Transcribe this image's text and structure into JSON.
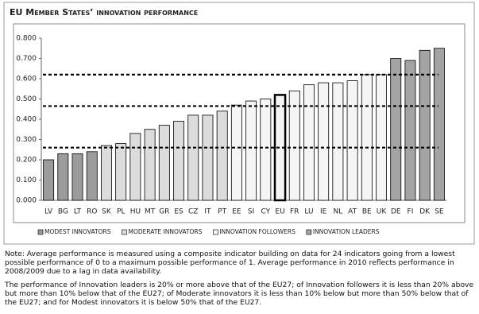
{
  "chart_data": {
    "type": "bar",
    "title": "EU Member States’ innovation performance",
    "categories": [
      "LV",
      "BG",
      "LT",
      "RO",
      "SK",
      "PL",
      "HU",
      "MT",
      "GR",
      "ES",
      "CZ",
      "IT",
      "PT",
      "EE",
      "SI",
      "CY",
      "EU",
      "FR",
      "LU",
      "IE",
      "NL",
      "AT",
      "BE",
      "UK",
      "DE",
      "FI",
      "DK",
      "SE"
    ],
    "series": [
      {
        "name": "MODEST INNOVATORS",
        "color": "#9c9c9c",
        "values": [
          0.2,
          0.23,
          0.23,
          0.24,
          null,
          null,
          null,
          null,
          null,
          null,
          null,
          null,
          null,
          null,
          null,
          null,
          null,
          null,
          null,
          null,
          null,
          null,
          null,
          null,
          null,
          null,
          null,
          null
        ]
      },
      {
        "name": "MODERATE INNOVATORS",
        "color": "#dcdcdc",
        "values": [
          null,
          null,
          null,
          null,
          0.27,
          0.28,
          0.33,
          0.35,
          0.37,
          0.39,
          0.42,
          0.42,
          0.44,
          null,
          null,
          null,
          null,
          null,
          null,
          null,
          null,
          null,
          null,
          null,
          null,
          null,
          null,
          null
        ]
      },
      {
        "name": "INNOVATION FOLLOWERS",
        "color": "#f5f5f5",
        "values": [
          null,
          null,
          null,
          null,
          null,
          null,
          null,
          null,
          null,
          null,
          null,
          null,
          null,
          0.47,
          0.49,
          0.5,
          0.52,
          0.54,
          0.57,
          0.58,
          0.58,
          0.59,
          0.62,
          0.62,
          null,
          null,
          null,
          null
        ]
      },
      {
        "name": "INNOVATION LEADERS",
        "color": "#a4a4a4",
        "values": [
          null,
          null,
          null,
          null,
          null,
          null,
          null,
          null,
          null,
          null,
          null,
          null,
          null,
          null,
          null,
          null,
          null,
          null,
          null,
          null,
          null,
          null,
          null,
          null,
          0.7,
          0.69,
          0.74,
          0.75
        ]
      }
    ],
    "highlight_category": "EU",
    "reference_lines": [
      0.26,
      0.465,
      0.62
    ],
    "ylim": [
      0,
      0.8
    ],
    "yticks": [
      {
        "value": 0,
        "label": "0.000"
      },
      {
        "value": 0.1,
        "label": "0.100"
      },
      {
        "value": 0.2,
        "label": "0.200"
      },
      {
        "value": 0.3,
        "label": "0.300"
      },
      {
        "value": 0.4,
        "label": "0.400"
      },
      {
        "value": 0.5,
        "label": "0.500"
      },
      {
        "value": 0.6,
        "label": "0.600"
      },
      {
        "value": 0.7,
        "label": "0.700"
      },
      {
        "value": 0.8,
        "label": "0.800"
      }
    ],
    "grid": false,
    "notes": [
      "Note: Average performance is measured using a composite indicator building on data for 24 indicators going from a lowest possible performance of 0 to a maximum possible performance of 1. Average performance in 2010 reflects performance in 2008/2009 due to a lag in data availability.",
      "The performance of Innovation leaders is 20% or more above that of the EU27; of Innovation followers it is less than 20% above but more than 10% below that of the EU27; of Moderate innovators it is less than 10% below but more than 50% below that of the EU27; and for Modest innovators it is below 50% that of the EU27."
    ]
  }
}
